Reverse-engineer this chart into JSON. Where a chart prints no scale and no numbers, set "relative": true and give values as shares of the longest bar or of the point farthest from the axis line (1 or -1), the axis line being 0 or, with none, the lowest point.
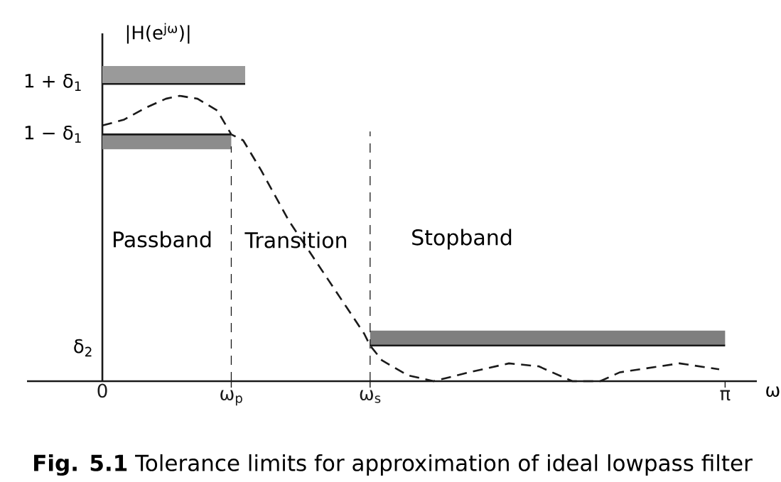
{
  "chart_data": {
    "type": "line",
    "relative": true,
    "xlabel": "ω",
    "ylabel": "|H(e$^{jω}$)|",
    "xlim": [
      -0.38,
      3.3
    ],
    "xticks": [
      0,
      {
        "value": 0.65,
        "label": "ω$_{p}$"
      },
      {
        "value": 1.35,
        "label": "ω$_{s}$"
      },
      {
        "value": 3.14,
        "label": "π"
      }
    ],
    "series": [
      {
        "color": "#1a1a1a",
        "line_style": "dashed",
        "x": [
          0,
          0.11,
          0.22,
          0.32,
          0.39,
          0.48,
          0.58,
          0.65,
          0.71,
          0.8,
          0.94,
          1.03,
          1.13,
          1.23,
          1.32,
          1.35,
          1.41,
          1.54,
          1.67,
          1.85,
          2.05,
          2.2,
          2.37,
          2.51,
          2.61,
          2.71,
          2.91,
          3.11
        ],
        "values": [
          0.86,
          0.88,
          0.92,
          0.95,
          0.96,
          0.95,
          0.91,
          0.83,
          0.81,
          0.71,
          0.54,
          0.45,
          0.35,
          0.25,
          0.16,
          0.12,
          0.07,
          0.02,
          0,
          0.03,
          0.06,
          0.05,
          0,
          0,
          0.03,
          0.04,
          0.06,
          0.04
        ]
      },
      {
        "color": "#1a1a1a",
        "line_style": "solid",
        "x": [
          0,
          0.72
        ],
        "values": [
          1,
          1
        ],
        "lower": [
          1,
          1
        ],
        "upper": [
          1.06,
          1.06
        ]
      },
      {
        "color": "#1a1a1a",
        "line_style": "solid",
        "x": [
          0,
          0.65
        ],
        "values": [
          0.83,
          0.83
        ],
        "lower": [
          0.78,
          0.78
        ],
        "upper": [
          0.83,
          0.83
        ]
      },
      {
        "color": "#1a1a1a",
        "line_style": "solid",
        "x": [
          1.35,
          3.14
        ],
        "values": [
          0.12,
          0.12
        ],
        "lower": [
          0.12,
          0.12
        ],
        "upper": [
          0.17,
          0.17
        ]
      },
      {
        "color": "#1a1a1a",
        "line_style": "dashed",
        "x": [
          0.65,
          0.65
        ],
        "values": [
          0,
          0.79
        ]
      },
      {
        "color": "#1a1a1a",
        "line_style": "dashed",
        "x": [
          1.35,
          1.35
        ],
        "values": [
          0,
          0.84
        ]
      }
    ],
    "annotations": [
      "1 + δ$_{1}$",
      "1 − δ$_{1}$",
      "δ$_{2}$",
      "Passband",
      "Transition",
      "Stopband",
      "**Fig. 5.1** Tolerance limits for approximation of ideal lowpass filter"
    ]
  }
}
